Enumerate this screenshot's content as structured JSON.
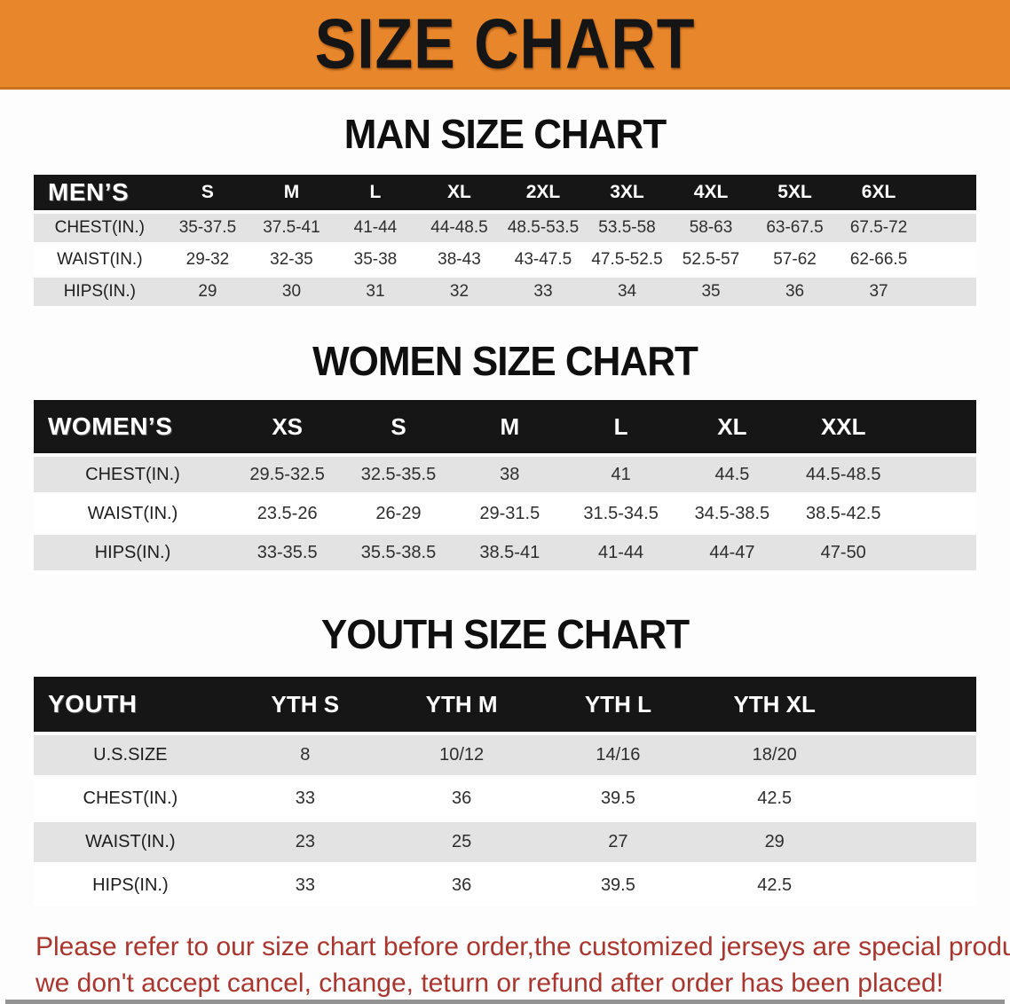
{
  "banner": {
    "title": "SIZE CHART",
    "bg_color": "#E8862B"
  },
  "sections": [
    {
      "heading": "MAN SIZE CHART",
      "table": {
        "header_label": "MEN’S",
        "columns": [
          "S",
          "M",
          "L",
          "XL",
          "2XL",
          "3XL",
          "4XL",
          "5XL",
          "6XL"
        ],
        "rows": [
          {
            "label": "CHEST(IN.)",
            "values": [
              "35-37.5",
              "37.5-41",
              "41-44",
              "44-48.5",
              "48.5-53.5",
              "53.5-58",
              "58-63",
              "63-67.5",
              "67.5-72"
            ]
          },
          {
            "label": "WAIST(IN.)",
            "values": [
              "29-32",
              "32-35",
              "35-38",
              "38-43",
              "43-47.5",
              "47.5-52.5",
              "52.5-57",
              "57-62",
              "62-66.5"
            ]
          },
          {
            "label": "HIPS(IN.)",
            "values": [
              "29",
              "30",
              "31",
              "32",
              "33",
              "34",
              "35",
              "36",
              "37"
            ]
          }
        ]
      }
    },
    {
      "heading": "WOMEN SIZE CHART",
      "table": {
        "header_label": "WOMEN’S",
        "columns": [
          "XS",
          "S",
          "M",
          "L",
          "XL",
          "XXL"
        ],
        "rows": [
          {
            "label": "CHEST(IN.)",
            "values": [
              "29.5-32.5",
              "32.5-35.5",
              "38",
              "41",
              "44.5",
              "44.5-48.5"
            ]
          },
          {
            "label": "WAIST(IN.)",
            "values": [
              "23.5-26",
              "26-29",
              "29-31.5",
              "31.5-34.5",
              "34.5-38.5",
              "38.5-42.5"
            ]
          },
          {
            "label": "HIPS(IN.)",
            "values": [
              "33-35.5",
              "35.5-38.5",
              "38.5-41",
              "41-44",
              "44-47",
              "47-50"
            ]
          }
        ]
      }
    },
    {
      "heading": "YOUTH SIZE CHART",
      "table": {
        "header_label": "YOUTH",
        "columns": [
          "YTH S",
          "YTH M",
          "YTH L",
          "YTH XL"
        ],
        "rows": [
          {
            "label": "U.S.SIZE",
            "values": [
              "8",
              "10/12",
              "14/16",
              "18/20"
            ]
          },
          {
            "label": "CHEST(IN.)",
            "values": [
              "33",
              "36",
              "39.5",
              "42.5"
            ]
          },
          {
            "label": "WAIST(IN.)",
            "values": [
              "23",
              "25",
              "27",
              "29"
            ]
          },
          {
            "label": "HIPS(IN.)",
            "values": [
              "33",
              "36",
              "39.5",
              "42.5"
            ]
          }
        ]
      }
    }
  ],
  "footer": {
    "line1": "Please refer to our size chart before order,the customized jerseys are special products,",
    "line2": "we don't accept cancel, change, teturn or refund after order has been placed!"
  },
  "colors": {
    "banner_orange": "#E8862B",
    "header_bar_black": "#161616",
    "stripe_gray": "#E3E3E3",
    "disclaimer_red": "#A9362E"
  }
}
